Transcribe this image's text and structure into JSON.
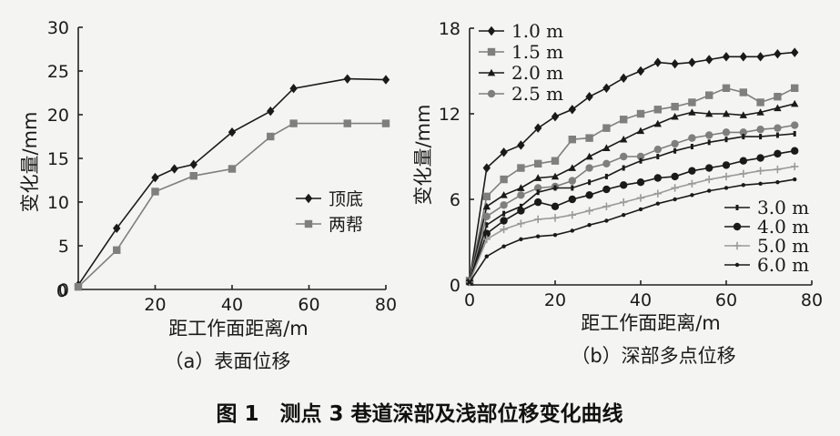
{
  "figure_caption": "图 1　测点 3 巷道深部及浅部位移变化曲线",
  "colors": {
    "black": "#1a1a1a",
    "gray": "#7f7f7f",
    "light": "#9a9a9a"
  },
  "chart_data": [
    {
      "type": "line",
      "subcaption": "（a）表面位移",
      "xlabel": "距工作面距离/m",
      "ylabel": "变化量/mm",
      "xlim": [
        0,
        80
      ],
      "ylim": [
        0,
        30
      ],
      "xticks": [
        "20",
        "40",
        "60",
        "80"
      ],
      "yticks": [
        "0",
        "5",
        "10",
        "15",
        "20",
        "25",
        "30"
      ],
      "legend_position": "middle-right",
      "series": [
        {
          "name": "顶底",
          "marker": "diamond",
          "color": "#1a1a1a",
          "x": [
            0,
            10,
            20,
            25,
            30,
            40,
            50,
            56,
            70,
            80
          ],
          "y": [
            0.5,
            7,
            12.8,
            13.8,
            14.3,
            18,
            20.4,
            23,
            24.1,
            24
          ]
        },
        {
          "name": "两帮",
          "marker": "square",
          "color": "#7f7f7f",
          "x": [
            0,
            10,
            20,
            30,
            40,
            50,
            56,
            70,
            80
          ],
          "y": [
            0.3,
            4.5,
            11.2,
            13,
            13.8,
            17.5,
            19,
            19,
            19
          ]
        }
      ]
    },
    {
      "type": "line",
      "subcaption": "（b）深部多点位移",
      "xlabel": "距工作面距离/m",
      "ylabel": "变化量/mm",
      "xlim": [
        0,
        80
      ],
      "ylim": [
        0,
        18
      ],
      "xticks": [
        "0",
        "20",
        "40",
        "60",
        "80"
      ],
      "yticks": [
        "0",
        "6",
        "12",
        "18"
      ],
      "legend_position": "top-left and bottom-right",
      "series": [
        {
          "name": "1.0 m",
          "marker": "diamond",
          "color": "#1a1a1a",
          "legend": "top",
          "x": [
            0,
            4,
            8,
            12,
            16,
            20,
            24,
            28,
            32,
            36,
            40,
            44,
            48,
            52,
            56,
            60,
            64,
            68,
            72,
            76
          ],
          "y": [
            0.3,
            8.2,
            9.3,
            9.8,
            11,
            11.8,
            12.3,
            13.2,
            13.8,
            14.5,
            15,
            15.6,
            15.5,
            15.6,
            15.8,
            16,
            16,
            16,
            16.2,
            16.3
          ]
        },
        {
          "name": "1.5 m",
          "marker": "square",
          "color": "#7f7f7f",
          "legend": "top",
          "x": [
            0,
            4,
            8,
            12,
            16,
            20,
            24,
            28,
            32,
            36,
            40,
            44,
            48,
            52,
            56,
            60,
            64,
            68,
            72,
            76
          ],
          "y": [
            0.3,
            6.2,
            7.4,
            8.2,
            8.5,
            8.7,
            10.2,
            10.3,
            11,
            11.6,
            12,
            12.3,
            12.5,
            12.8,
            13.3,
            13.8,
            13.5,
            12.8,
            13.2,
            13.8
          ]
        },
        {
          "name": "2.0 m",
          "marker": "triangle",
          "color": "#1a1a1a",
          "legend": "top",
          "x": [
            0,
            4,
            8,
            12,
            16,
            20,
            24,
            28,
            32,
            36,
            40,
            44,
            48,
            52,
            56,
            60,
            64,
            68,
            72,
            76
          ],
          "y": [
            0.2,
            5.5,
            6.3,
            6.8,
            7.5,
            7.6,
            8.2,
            9,
            9.6,
            10.2,
            10.8,
            11.3,
            11.8,
            12.1,
            12,
            12,
            11.9,
            12.1,
            12.4,
            12.7
          ]
        },
        {
          "name": "2.5 m",
          "marker": "circle",
          "color": "#7f7f7f",
          "legend": "top",
          "x": [
            0,
            4,
            8,
            12,
            16,
            20,
            24,
            28,
            32,
            36,
            40,
            44,
            48,
            52,
            56,
            60,
            64,
            68,
            72,
            76
          ],
          "y": [
            0.2,
            4.8,
            5.6,
            6.3,
            6.8,
            6.9,
            7.3,
            8.2,
            8.5,
            9,
            9,
            9.5,
            9.9,
            10.3,
            10.5,
            10.7,
            10.7,
            10.9,
            11,
            11.2
          ]
        },
        {
          "name": "3.0 m",
          "marker": "tick",
          "color": "#1a1a1a",
          "legend": "bottom",
          "x": [
            0,
            4,
            8,
            12,
            16,
            20,
            24,
            28,
            32,
            36,
            40,
            44,
            48,
            52,
            56,
            60,
            64,
            68,
            72,
            76
          ],
          "y": [
            0.2,
            4.2,
            5,
            5.5,
            6.5,
            6.8,
            6.8,
            7.2,
            7.6,
            8.2,
            8.7,
            9,
            9.4,
            9.7,
            10,
            10.2,
            10.4,
            10.4,
            10.5,
            10.6
          ]
        },
        {
          "name": "4.0 m",
          "marker": "circle",
          "color": "#1a1a1a",
          "legend": "bottom",
          "x": [
            0,
            4,
            8,
            12,
            16,
            20,
            24,
            28,
            32,
            36,
            40,
            44,
            48,
            52,
            56,
            60,
            64,
            68,
            72,
            76
          ],
          "y": [
            0.2,
            3.6,
            4.5,
            5.2,
            5.8,
            5.5,
            6,
            6.3,
            6.7,
            7,
            7.2,
            7.5,
            7.6,
            8,
            8.2,
            8.4,
            8.7,
            8.9,
            9.2,
            9.4
          ]
        },
        {
          "name": "5.0 m",
          "marker": "plus",
          "color": "#9a9a9a",
          "legend": "bottom",
          "x": [
            0,
            4,
            8,
            12,
            16,
            20,
            24,
            28,
            32,
            36,
            40,
            44,
            48,
            52,
            56,
            60,
            64,
            68,
            72,
            76
          ],
          "y": [
            0.2,
            3.2,
            3.9,
            4.3,
            4.6,
            4.7,
            4.9,
            5.2,
            5.5,
            5.8,
            6.1,
            6.4,
            6.8,
            7.1,
            7.4,
            7.6,
            7.8,
            8,
            8.1,
            8.3
          ]
        },
        {
          "name": "6.0 m",
          "marker": "dot",
          "color": "#1a1a1a",
          "legend": "bottom",
          "x": [
            0,
            4,
            8,
            12,
            16,
            20,
            24,
            28,
            32,
            36,
            40,
            44,
            48,
            52,
            56,
            60,
            64,
            68,
            72,
            76
          ],
          "y": [
            0.2,
            2,
            2.7,
            3.2,
            3.4,
            3.5,
            3.8,
            4.2,
            4.5,
            4.9,
            5.3,
            5.7,
            6,
            6.3,
            6.6,
            6.8,
            7,
            7.1,
            7.2,
            7.4
          ]
        }
      ]
    }
  ]
}
